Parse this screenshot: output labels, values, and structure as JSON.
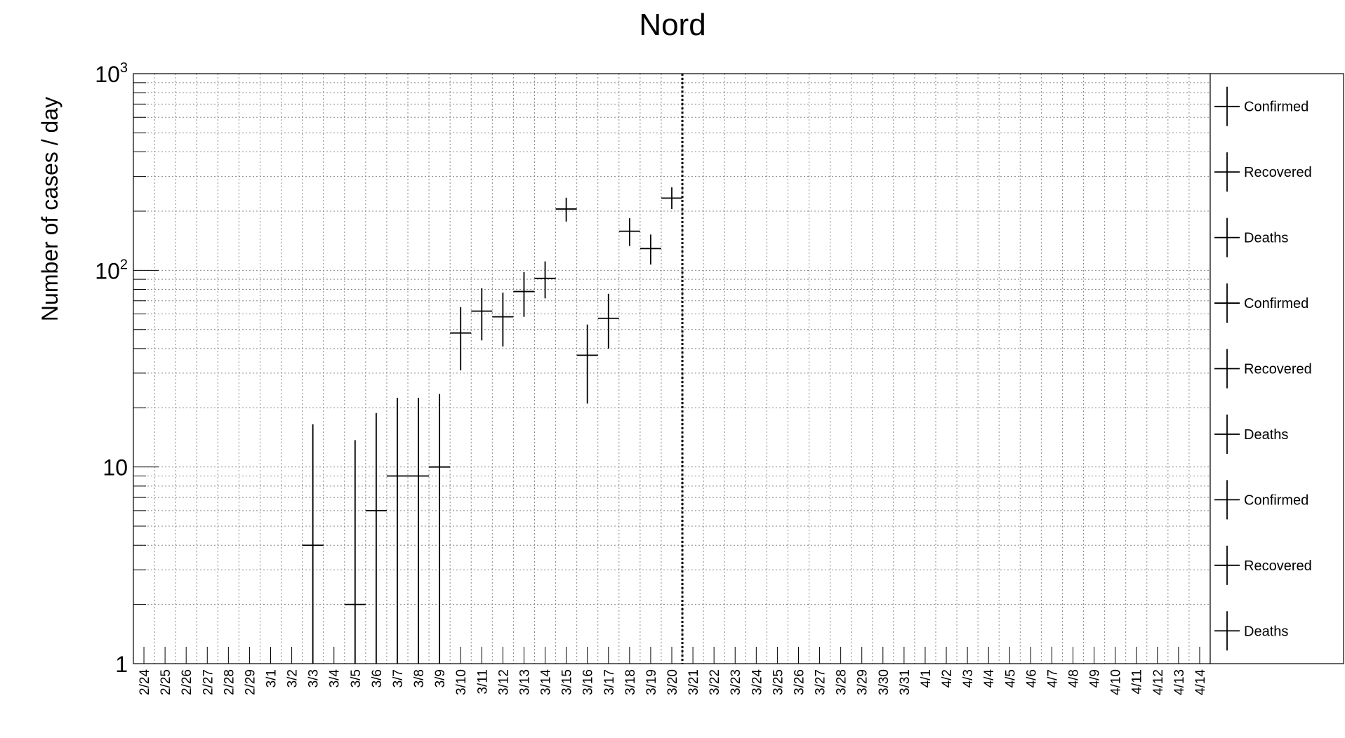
{
  "chart_data": {
    "type": "scatter",
    "title": "Nord",
    "xlabel": "",
    "ylabel": "Number of cases / day",
    "y_scale": "log",
    "ylim": [
      1,
      1000
    ],
    "grid": true,
    "categories": [
      "2/24",
      "2/25",
      "2/26",
      "2/27",
      "2/28",
      "2/29",
      "3/1",
      "3/2",
      "3/3",
      "3/4",
      "3/5",
      "3/6",
      "3/7",
      "3/8",
      "3/9",
      "3/10",
      "3/11",
      "3/12",
      "3/13",
      "3/14",
      "3/15",
      "3/16",
      "3/17",
      "3/18",
      "3/19",
      "3/20",
      "3/21",
      "3/22",
      "3/23",
      "3/24",
      "3/25",
      "3/26",
      "3/27",
      "3/28",
      "3/29",
      "3/30",
      "3/31",
      "4/1",
      "4/2",
      "4/3",
      "4/4",
      "4/5",
      "4/6",
      "4/7",
      "4/8",
      "4/9",
      "4/10",
      "4/11",
      "4/12",
      "4/13",
      "4/14"
    ],
    "y_tick_labels": [
      {
        "value": 1,
        "base": "1",
        "exp": ""
      },
      {
        "value": 10,
        "base": "10",
        "exp": ""
      },
      {
        "value": 100,
        "base": "10",
        "exp": "2"
      },
      {
        "value": 1000,
        "base": "10",
        "exp": "3"
      }
    ],
    "series": [
      {
        "name": "Confirmed",
        "points": [
          {
            "x": "3/3",
            "y": 4,
            "ylo": 1,
            "yhi": 16.5
          },
          {
            "x": "3/5",
            "y": 2,
            "ylo": 1,
            "yhi": 13.7
          },
          {
            "x": "3/6",
            "y": 6,
            "ylo": 1,
            "yhi": 18.8
          },
          {
            "x": "3/7",
            "y": 9,
            "ylo": 1,
            "yhi": 22.5
          },
          {
            "x": "3/8",
            "y": 9,
            "ylo": 1,
            "yhi": 22.5
          },
          {
            "x": "3/9",
            "y": 10,
            "ylo": 1,
            "yhi": 23.5
          },
          {
            "x": "3/10",
            "y": 48,
            "ylo": 31,
            "yhi": 65
          },
          {
            "x": "3/11",
            "y": 62,
            "ylo": 44,
            "yhi": 81
          },
          {
            "x": "3/12",
            "y": 58,
            "ylo": 41,
            "yhi": 77
          },
          {
            "x": "3/13",
            "y": 78,
            "ylo": 58,
            "yhi": 98
          },
          {
            "x": "3/14",
            "y": 91,
            "ylo": 72,
            "yhi": 111
          },
          {
            "x": "3/15",
            "y": 205,
            "ylo": 177,
            "yhi": 234
          },
          {
            "x": "3/16",
            "y": 37,
            "ylo": 21,
            "yhi": 53
          },
          {
            "x": "3/17",
            "y": 57,
            "ylo": 40,
            "yhi": 76
          },
          {
            "x": "3/18",
            "y": 158,
            "ylo": 133,
            "yhi": 184
          },
          {
            "x": "3/19",
            "y": 129,
            "ylo": 107,
            "yhi": 152
          },
          {
            "x": "3/20",
            "y": 233,
            "ylo": 205,
            "yhi": 264
          }
        ]
      }
    ],
    "vertical_marker": {
      "between": [
        "3/20",
        "3/21"
      ],
      "style": "dotted"
    },
    "legend": {
      "placement": "right",
      "entries": [
        "Confirmed",
        "Recovered",
        "Deaths",
        "Confirmed",
        "Recovered",
        "Deaths",
        "Confirmed",
        "Recovered",
        "Deaths"
      ]
    }
  }
}
